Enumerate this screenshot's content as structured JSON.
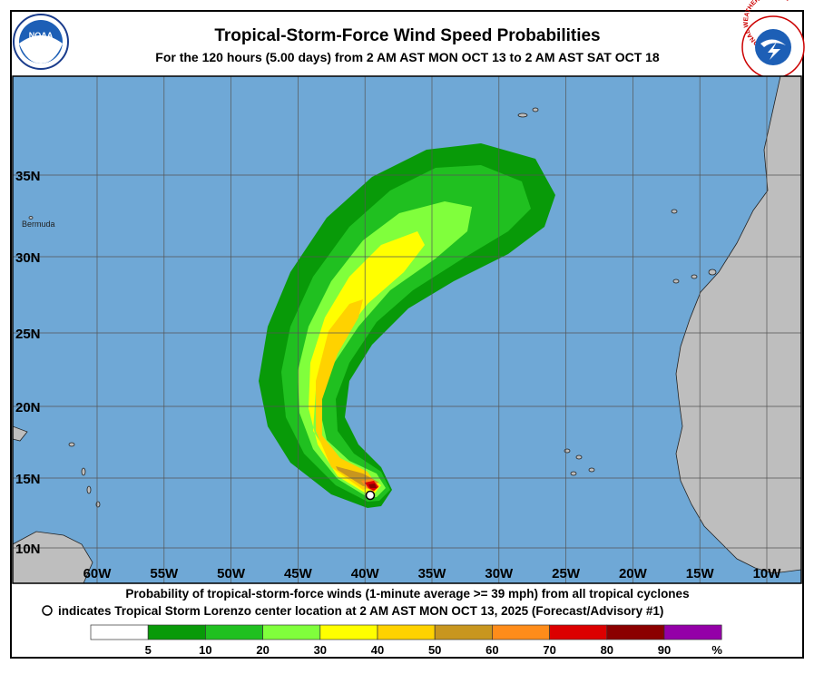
{
  "header": {
    "title": "Tropical-Storm-Force Wind Speed Probabilities",
    "subtitle": "For the 120 hours (5.00 days) from 2 AM AST MON OCT 13 to 2 AM AST SAT OCT 18",
    "noaa_logo": "NOAA",
    "nws_logo": "NATIONAL WEATHER SERVICE"
  },
  "map": {
    "latitude_labels": [
      "35N",
      "30N",
      "25N",
      "20N",
      "15N",
      "10N"
    ],
    "longitude_labels": [
      "60W",
      "55W",
      "50W",
      "45W",
      "40W",
      "35W",
      "30W",
      "25W",
      "20W",
      "15W",
      "10W"
    ],
    "place_labels": [
      "Bermuda"
    ]
  },
  "footer": {
    "line1": "Probability of tropical-storm-force winds (1-minute average >= 39 mph) from all tropical cyclones",
    "line2": "indicates Tropical Storm Lorenzo center location at 2 AM AST MON OCT 13, 2025 (Forecast/Advisory #1)"
  },
  "legend": {
    "colors": [
      "#ffffff",
      "#089a08",
      "#20c020",
      "#80ff3c",
      "#ffff00",
      "#ffd200",
      "#c8961e",
      "#ff8c1a",
      "#dc0000",
      "#8b0000",
      "#9400a8"
    ],
    "labels": [
      "5",
      "10",
      "20",
      "30",
      "40",
      "50",
      "60",
      "70",
      "80",
      "90",
      "%"
    ]
  }
}
